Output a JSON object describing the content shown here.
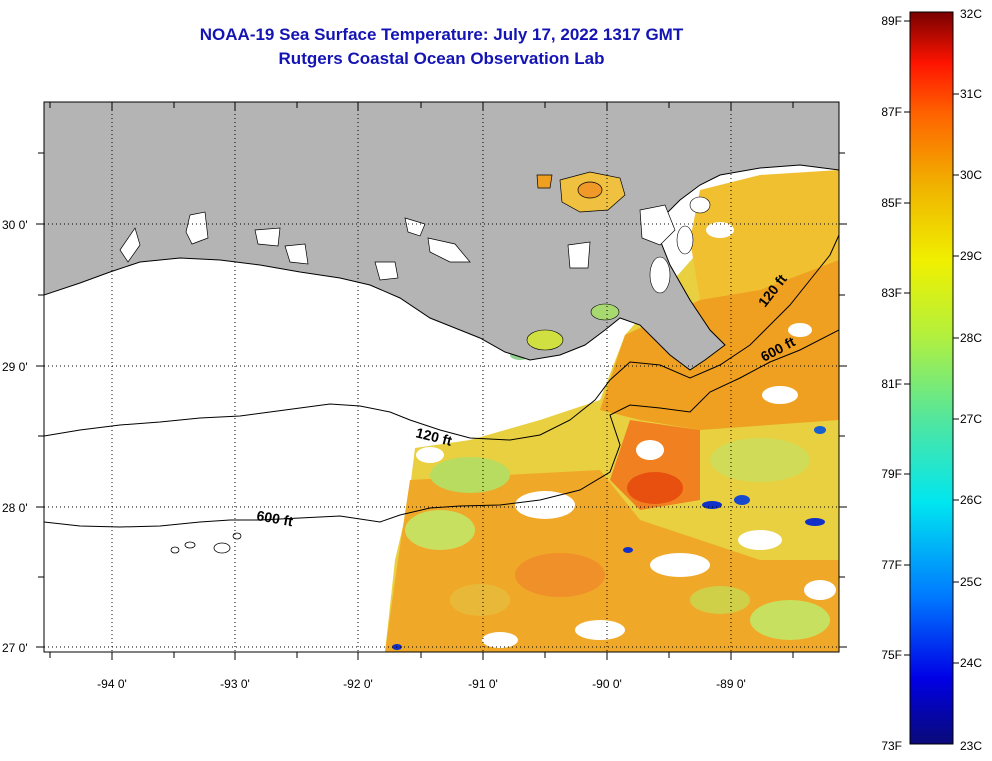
{
  "title": {
    "line1": "NOAA-19 Sea Surface Temperature:  July 17, 2022 1317 GMT",
    "line2": "Rutgers Coastal Ocean Observation Lab"
  },
  "axes": {
    "longitude_labels": [
      "-94 0'",
      "-93 0'",
      "-92 0'",
      "-91 0'",
      "-90 0'",
      "-89 0'"
    ],
    "latitude_labels": [
      "30 0'",
      "29 0'",
      "28 0'",
      "27 0'"
    ]
  },
  "contours": {
    "label_120_west": "120 ft",
    "label_120_east": "120 ft",
    "label_600_west": "600 ft",
    "label_600_east": "600 ft"
  },
  "colorbar": {
    "fahrenheit_labels": [
      "89F",
      "87F",
      "85F",
      "83F",
      "81F",
      "79F",
      "77F",
      "75F",
      "73F"
    ],
    "celsius_labels": [
      "32C",
      "31C",
      "30C",
      "29C",
      "28C",
      "27C",
      "26C",
      "25C",
      "24C",
      "23C"
    ],
    "min_c": 23,
    "max_c": 32
  },
  "colors": {
    "land": "#b4b4b4",
    "title": "#1414b4",
    "hot": "#e85010",
    "warm": "#f0a020",
    "mild": "#e8d040",
    "cool": "#a8d870",
    "cold": "#1030c8"
  }
}
